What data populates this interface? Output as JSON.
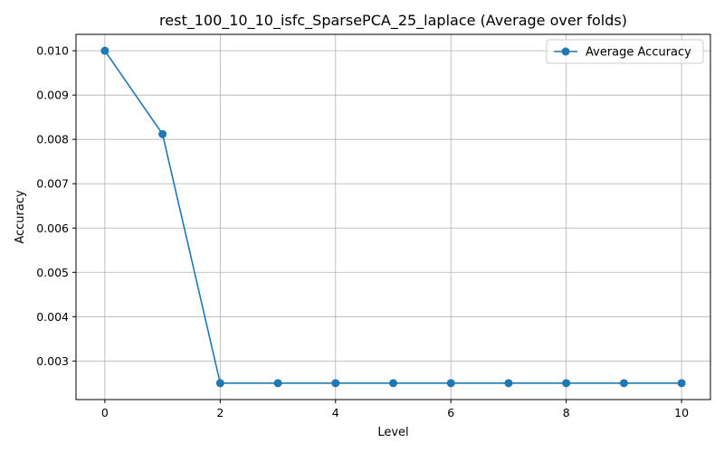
{
  "chart_data": {
    "type": "line",
    "title": "rest_100_10_10_isfc_SparsePCA_25_laplace (Average over folds)",
    "xlabel": "Level",
    "ylabel": "Accuracy",
    "x": [
      0,
      1,
      2,
      3,
      4,
      5,
      6,
      7,
      8,
      9,
      10
    ],
    "series": [
      {
        "name": "Average Accuracy",
        "values": [
          0.01,
          0.00812,
          0.0025,
          0.0025,
          0.0025,
          0.0025,
          0.0025,
          0.0025,
          0.0025,
          0.0025,
          0.0025
        ],
        "color": "#1f77b4",
        "marker": "circle"
      }
    ],
    "xlim": [
      -0.5,
      10.5
    ],
    "ylim": [
      0.00213,
      0.01037
    ],
    "xticks": [
      0,
      2,
      4,
      6,
      8,
      10
    ],
    "xtick_labels": [
      "0",
      "2",
      "4",
      "6",
      "8",
      "10"
    ],
    "yticks": [
      0.003,
      0.004,
      0.005,
      0.006,
      0.007,
      0.008,
      0.009,
      0.01
    ],
    "ytick_labels": [
      "0.003",
      "0.004",
      "0.005",
      "0.006",
      "0.007",
      "0.008",
      "0.009",
      "0.010"
    ],
    "grid": true,
    "legend_position": "top-right"
  }
}
